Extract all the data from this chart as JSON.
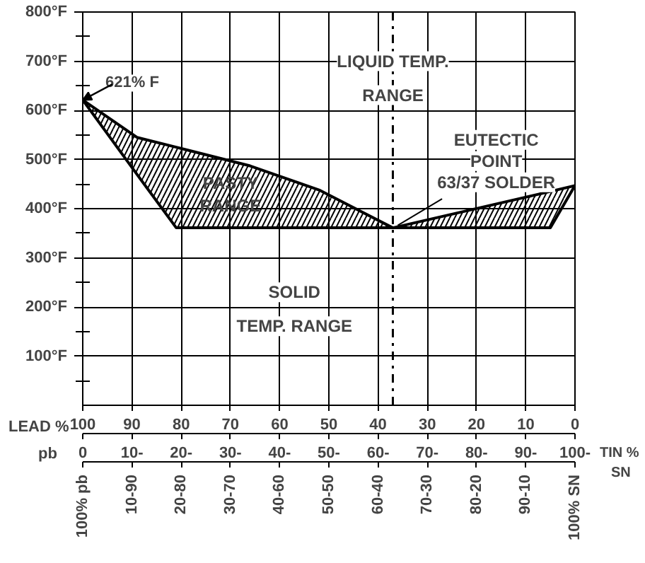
{
  "chart_data": {
    "type": "line",
    "x": [
      0,
      11,
      19,
      34,
      48,
      63,
      95,
      100
    ],
    "series": [
      {
        "color": "#000000",
        "values": [
          621,
          545,
          525,
          487,
          438,
          361,
          435,
          447
        ],
        "lower": [
          621,
          470,
          361,
          361,
          361,
          361,
          361,
          447
        ],
        "upper": [
          621,
          545,
          525,
          487,
          438,
          361,
          435,
          447
        ]
      },
      {
        "color": "#000000",
        "values": [
          621,
          470,
          361,
          361,
          361,
          361,
          361,
          447
        ]
      }
    ],
    "xlim": [
      0,
      100
    ],
    "xticks": [
      0,
      {
        "value": 10,
        "label": "10-"
      },
      {
        "value": 20,
        "label": "20-"
      },
      {
        "value": 30,
        "label": "30-"
      },
      {
        "value": 40,
        "label": "40-"
      },
      {
        "value": 50,
        "label": "50-"
      },
      {
        "value": 60,
        "label": "60-"
      },
      {
        "value": 70,
        "label": "70-"
      },
      {
        "value": 80,
        "label": "80-"
      },
      {
        "value": 90,
        "label": "90-"
      },
      {
        "value": 100,
        "label": "100-"
      }
    ],
    "xlabel": "TIN %",
    "x2lim": [
      100,
      0
    ],
    "x2ticks": [
      100,
      90,
      80,
      70,
      60,
      50,
      40,
      30,
      20,
      10,
      0
    ],
    "x2label": "LEAD %",
    "ylim": [
      0,
      800
    ],
    "yticks": [
      {
        "value": 50,
        "label": null
      },
      {
        "value": 100,
        "label": "100°F"
      },
      {
        "value": 150,
        "label": null
      },
      {
        "value": 200,
        "label": "200°F"
      },
      {
        "value": 250,
        "label": null
      },
      {
        "value": 300,
        "label": "300°F"
      },
      {
        "value": 350,
        "label": null
      },
      {
        "value": 400,
        "label": "400°F"
      },
      {
        "value": 450,
        "label": null
      },
      {
        "value": 500,
        "label": "500°F"
      },
      {
        "value": 550,
        "label": null
      },
      {
        "value": 600,
        "label": "600°F"
      },
      {
        "value": 650,
        "label": null
      },
      {
        "value": 700,
        "label": "700°F"
      },
      {
        "value": 750,
        "label": null
      },
      {
        "value": 800,
        "label": "800°F"
      }
    ],
    "grid": true,
    "ref_lines": [
      {
        "axis": "x",
        "value": 63,
        "color": "#000000",
        "line_style": "dashed"
      }
    ],
    "annotations": [
      {
        "text": "621% F",
        "x": 0,
        "y": 621
      },
      "LIQUID TEMP.\nRANGE",
      "PASTY\nRANGE",
      "SOLID\nTEMP. RANGE",
      {
        "text": "EUTECTIC\nPOINT\n63/37 SOLDER",
        "x": 63,
        "y": 361
      },
      "pb",
      "SN",
      "100% pb",
      "10-90",
      "20-80",
      "30-70",
      "40-60",
      "50-50",
      "60-40",
      "70-30",
      "80-20",
      "90-10",
      "100% SN"
    ]
  }
}
